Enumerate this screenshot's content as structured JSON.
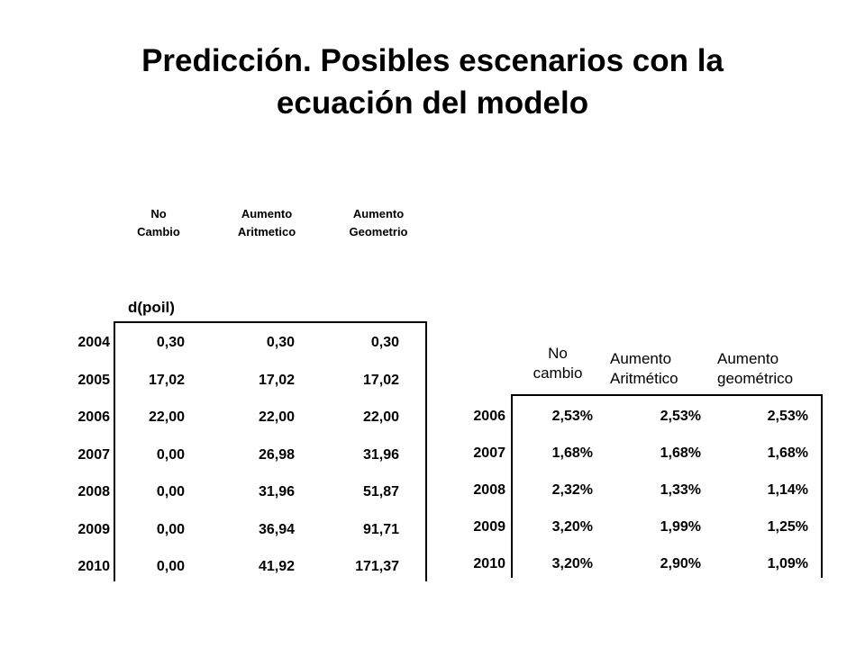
{
  "title": "Predicción. Posibles escenarios con la ecuación del modelo",
  "table1": {
    "headers": [
      [
        "No",
        "Cambio"
      ],
      [
        "Aumento",
        "Aritmetico"
      ],
      [
        "Aumento",
        "Geometrio"
      ]
    ],
    "unit_label": "d(poil)",
    "rows": [
      {
        "year": "2004",
        "values": [
          "0,30",
          "0,30",
          "0,30"
        ]
      },
      {
        "year": "2005",
        "values": [
          "17,02",
          "17,02",
          "17,02"
        ]
      },
      {
        "year": "2006",
        "values": [
          "22,00",
          "22,00",
          "22,00"
        ]
      },
      {
        "year": "2007",
        "values": [
          "0,00",
          "26,98",
          "31,96"
        ]
      },
      {
        "year": "2008",
        "values": [
          "0,00",
          "31,96",
          "51,87"
        ]
      },
      {
        "year": "2009",
        "values": [
          "0,00",
          "36,94",
          "91,71"
        ]
      },
      {
        "year": "2010",
        "values": [
          "0,00",
          "41,92",
          "171,37"
        ]
      }
    ]
  },
  "table2": {
    "headers": [
      [
        "No",
        "cambio"
      ],
      [
        "Aumento",
        "Aritmético"
      ],
      [
        "Aumento",
        "geométrico"
      ]
    ],
    "rows": [
      {
        "year": "2006",
        "values": [
          "2,53%",
          "2,53%",
          "2,53%"
        ]
      },
      {
        "year": "2007",
        "values": [
          "1,68%",
          "1,68%",
          "1,68%"
        ]
      },
      {
        "year": "2008",
        "values": [
          "2,32%",
          "1,33%",
          "1,14%"
        ]
      },
      {
        "year": "2009",
        "values": [
          "3,20%",
          "1,99%",
          "1,25%"
        ]
      },
      {
        "year": "2010",
        "values": [
          "3,20%",
          "2,90%",
          "1,09%"
        ]
      }
    ]
  }
}
